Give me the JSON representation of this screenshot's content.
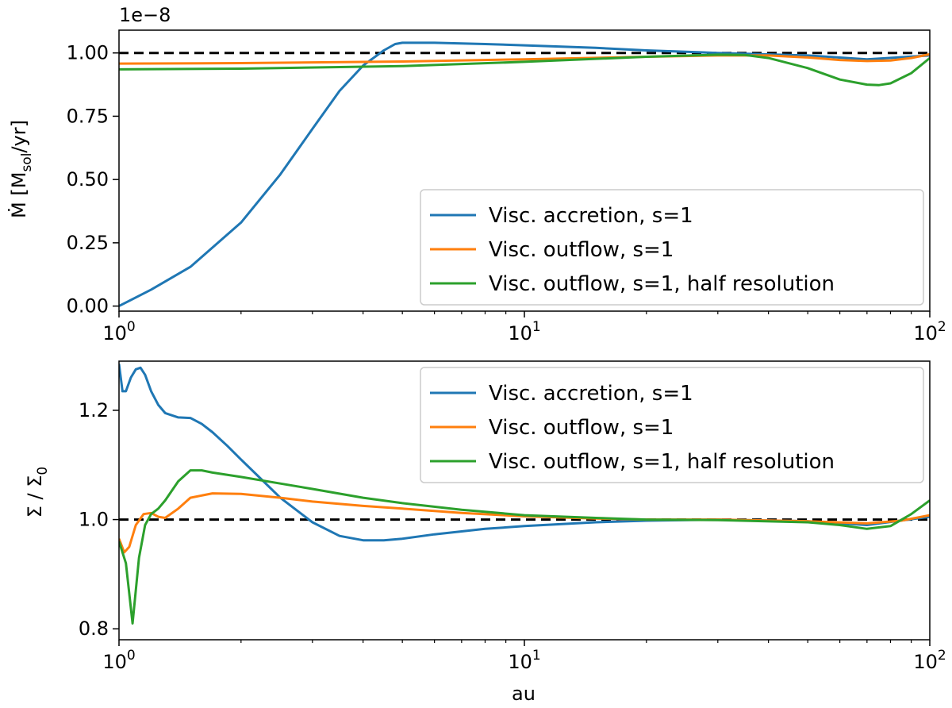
{
  "figure": {
    "xlabel": "au"
  },
  "colors": {
    "blue": "#1f77b4",
    "orange": "#ff7f0e",
    "green": "#2ca02c",
    "reference": "#000000"
  },
  "chart_data": [
    {
      "type": "line",
      "panel": "top",
      "xscale": "log",
      "xlim": [
        1,
        100
      ],
      "ylim": [
        -0.02,
        1.09
      ],
      "yticks": [
        0.0,
        0.25,
        0.5,
        0.75,
        1.0
      ],
      "ytick_labels": [
        "0.00",
        "0.25",
        "0.50",
        "0.75",
        "1.00"
      ],
      "offset_text": "1e−8",
      "ylabel_main": "Ṁ  [M",
      "ylabel_sub": "sol",
      "ylabel_end": "/yr]",
      "xlabel": "",
      "x_tick_base": [
        "10",
        "10",
        "10"
      ],
      "x_tick_exp": [
        "0",
        "1",
        "2"
      ],
      "x_tick_values": [
        1,
        10,
        100
      ],
      "reference_line": 1.0,
      "legend_location": "lower right",
      "series": [
        {
          "name": "Visc. accretion, s=1",
          "color": "#1f77b4",
          "x": [
            1.0,
            1.2,
            1.5,
            2.0,
            2.5,
            3.0,
            3.5,
            4.0,
            4.5,
            4.8,
            5.0,
            6.0,
            8.0,
            10.0,
            15.0,
            20.0,
            30.0,
            50.0,
            70.0,
            100.0
          ],
          "y": [
            0.0,
            0.065,
            0.155,
            0.33,
            0.52,
            0.7,
            0.85,
            0.95,
            1.01,
            1.035,
            1.04,
            1.04,
            1.035,
            1.03,
            1.02,
            1.01,
            1.0,
            0.99,
            0.975,
            0.99
          ]
        },
        {
          "name": "Visc. outflow, s=1",
          "color": "#ff7f0e",
          "x": [
            1.0,
            2.0,
            5.0,
            10.0,
            20.0,
            30.0,
            40.0,
            50.0,
            60.0,
            70.0,
            80.0,
            90.0,
            100.0
          ],
          "y": [
            0.958,
            0.96,
            0.966,
            0.975,
            0.985,
            0.99,
            0.99,
            0.982,
            0.972,
            0.968,
            0.97,
            0.98,
            0.995
          ]
        },
        {
          "name": "Visc. outflow, s=1, half resolution",
          "color": "#2ca02c",
          "x": [
            1.0,
            2.0,
            5.0,
            10.0,
            20.0,
            30.0,
            35.0,
            40.0,
            50.0,
            60.0,
            70.0,
            75.0,
            80.0,
            90.0,
            100.0
          ],
          "y": [
            0.935,
            0.938,
            0.948,
            0.965,
            0.985,
            0.993,
            0.992,
            0.98,
            0.94,
            0.895,
            0.875,
            0.873,
            0.88,
            0.92,
            0.98
          ]
        }
      ]
    },
    {
      "type": "line",
      "panel": "bottom",
      "xscale": "log",
      "xlim": [
        1,
        100
      ],
      "ylim": [
        0.78,
        1.29
      ],
      "yticks": [
        0.8,
        1.0,
        1.2
      ],
      "ytick_labels": [
        "0.8",
        "1.0",
        "1.2"
      ],
      "ylabel_main": "Σ / Σ",
      "ylabel_sub": "0",
      "xlabel": "au",
      "x_tick_base": [
        "10",
        "10",
        "10"
      ],
      "x_tick_exp": [
        "0",
        "1",
        "2"
      ],
      "x_tick_values": [
        1,
        10,
        100
      ],
      "reference_line": 1.0,
      "legend_location": "upper right",
      "series": [
        {
          "name": "Visc. accretion, s=1",
          "color": "#1f77b4",
          "x": [
            1.0,
            1.02,
            1.04,
            1.07,
            1.1,
            1.13,
            1.16,
            1.2,
            1.25,
            1.3,
            1.4,
            1.5,
            1.6,
            1.7,
            1.85,
            2.0,
            2.2,
            2.5,
            3.0,
            3.5,
            4.0,
            4.5,
            5.0,
            6.0,
            8.0,
            10.0,
            15.0,
            20.0,
            30.0,
            50.0,
            70.0,
            100.0
          ],
          "y": [
            1.285,
            1.235,
            1.235,
            1.26,
            1.275,
            1.278,
            1.265,
            1.235,
            1.21,
            1.195,
            1.187,
            1.186,
            1.175,
            1.16,
            1.135,
            1.11,
            1.08,
            1.04,
            0.995,
            0.97,
            0.962,
            0.962,
            0.965,
            0.973,
            0.983,
            0.988,
            0.995,
            0.998,
            1.0,
            0.997,
            0.99,
            1.005
          ]
        },
        {
          "name": "Visc. outflow, s=1",
          "color": "#ff7f0e",
          "x": [
            1.0,
            1.03,
            1.06,
            1.1,
            1.15,
            1.2,
            1.25,
            1.3,
            1.4,
            1.5,
            1.7,
            2.0,
            2.5,
            3.0,
            4.0,
            5.0,
            7.0,
            10.0,
            15.0,
            20.0,
            30.0,
            50.0,
            70.0,
            85.0,
            100.0
          ],
          "y": [
            0.965,
            0.94,
            0.95,
            0.99,
            1.01,
            1.012,
            1.005,
            1.003,
            1.02,
            1.04,
            1.048,
            1.047,
            1.04,
            1.033,
            1.025,
            1.02,
            1.012,
            1.006,
            1.002,
            1.0,
            1.0,
            0.997,
            0.993,
            0.998,
            1.008
          ]
        },
        {
          "name": "Visc. outflow, s=1, half resolution",
          "color": "#2ca02c",
          "x": [
            1.0,
            1.04,
            1.08,
            1.12,
            1.16,
            1.2,
            1.25,
            1.3,
            1.4,
            1.5,
            1.6,
            1.7,
            2.0,
            2.5,
            3.0,
            4.0,
            5.0,
            7.0,
            10.0,
            15.0,
            20.0,
            30.0,
            50.0,
            60.0,
            70.0,
            80.0,
            90.0,
            100.0
          ],
          "y": [
            0.96,
            0.92,
            0.81,
            0.93,
            0.99,
            1.01,
            1.02,
            1.035,
            1.07,
            1.09,
            1.09,
            1.086,
            1.078,
            1.066,
            1.056,
            1.04,
            1.03,
            1.018,
            1.008,
            1.003,
            1.0,
            0.999,
            0.995,
            0.99,
            0.983,
            0.988,
            1.01,
            1.035
          ]
        }
      ]
    }
  ]
}
